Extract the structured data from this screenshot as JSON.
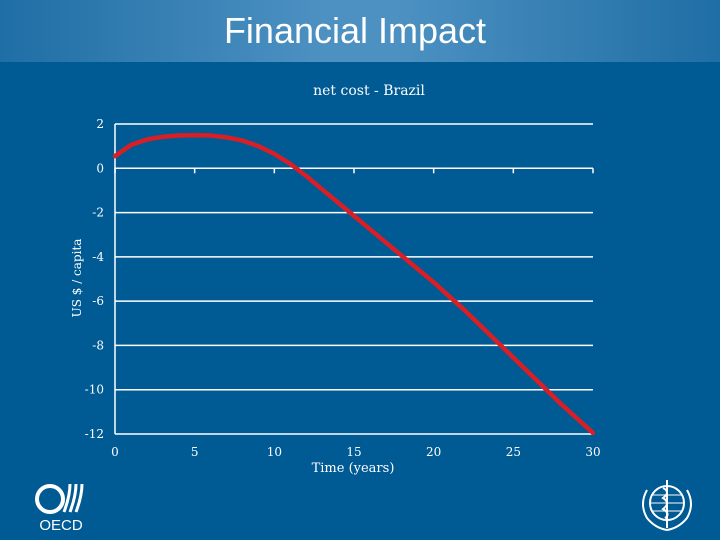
{
  "slide": {
    "title": "Financial Impact"
  },
  "logos": {
    "left": "OECD",
    "right_icon": "who-emblem-icon"
  },
  "colors": {
    "background": "#005a94",
    "line": "#d91f26",
    "grid": "#ffffff",
    "text": "#ffffff"
  },
  "chart_data": {
    "type": "line",
    "title": "net cost - Brazil",
    "xlabel": "Time (years)",
    "ylabel": "US $ / capita",
    "xlim": [
      0,
      30
    ],
    "ylim": [
      -12,
      2
    ],
    "xticks": [
      "0",
      "5",
      "10",
      "15",
      "20",
      "25",
      "30"
    ],
    "yticks": [
      "2",
      "0",
      "-2",
      "-4",
      "-6",
      "-8",
      "-10",
      "-12"
    ],
    "grid": "horizontal",
    "legend": "none",
    "series": [
      {
        "x": [
          0,
          1,
          2,
          3,
          4,
          5,
          6,
          7,
          8,
          9,
          10,
          11,
          12,
          13,
          14,
          15,
          16,
          17,
          18,
          19,
          20,
          21,
          22,
          23,
          24,
          25,
          26,
          27,
          28,
          29,
          30
        ],
        "values": [
          0.55,
          1.05,
          1.3,
          1.42,
          1.48,
          1.5,
          1.48,
          1.4,
          1.25,
          1.0,
          0.65,
          0.2,
          -0.35,
          -0.95,
          -1.55,
          -2.15,
          -2.75,
          -3.35,
          -3.95,
          -4.55,
          -5.15,
          -5.8,
          -6.45,
          -7.15,
          -7.85,
          -8.55,
          -9.25,
          -9.95,
          -10.65,
          -11.3,
          -11.95
        ]
      }
    ]
  }
}
